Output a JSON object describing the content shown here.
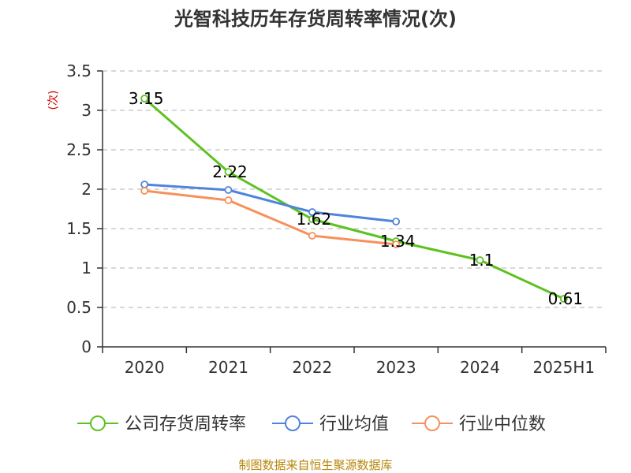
{
  "chart_data": {
    "type": "line",
    "title": "光智科技历年存货周转率情况(次)",
    "ylabel": "(次)",
    "xlabel": "",
    "categories": [
      "2020",
      "2021",
      "2022",
      "2023",
      "2024",
      "2025H1"
    ],
    "ylim": [
      0,
      3.5
    ],
    "yticks": [
      "0",
      "0.5",
      "1",
      "1.5",
      "2",
      "2.5",
      "3",
      "3.5"
    ],
    "grid": true,
    "legend_position": "bottom",
    "series": [
      {
        "name": "公司存货周转率",
        "color": "#5cc21f",
        "values": [
          3.15,
          2.22,
          1.62,
          1.34,
          1.1,
          0.61
        ],
        "labels": [
          "3.15",
          "2.22",
          "1.62",
          "1.34",
          "1.1",
          "0.61"
        ]
      },
      {
        "name": "行业均值",
        "color": "#4f84dc",
        "values": [
          2.06,
          1.99,
          1.71,
          1.59,
          null,
          null
        ]
      },
      {
        "name": "行业中位数",
        "color": "#f7905b",
        "values": [
          1.98,
          1.86,
          1.41,
          1.3,
          null,
          null
        ]
      }
    ]
  },
  "source": "制图数据来自恒生聚源数据库"
}
